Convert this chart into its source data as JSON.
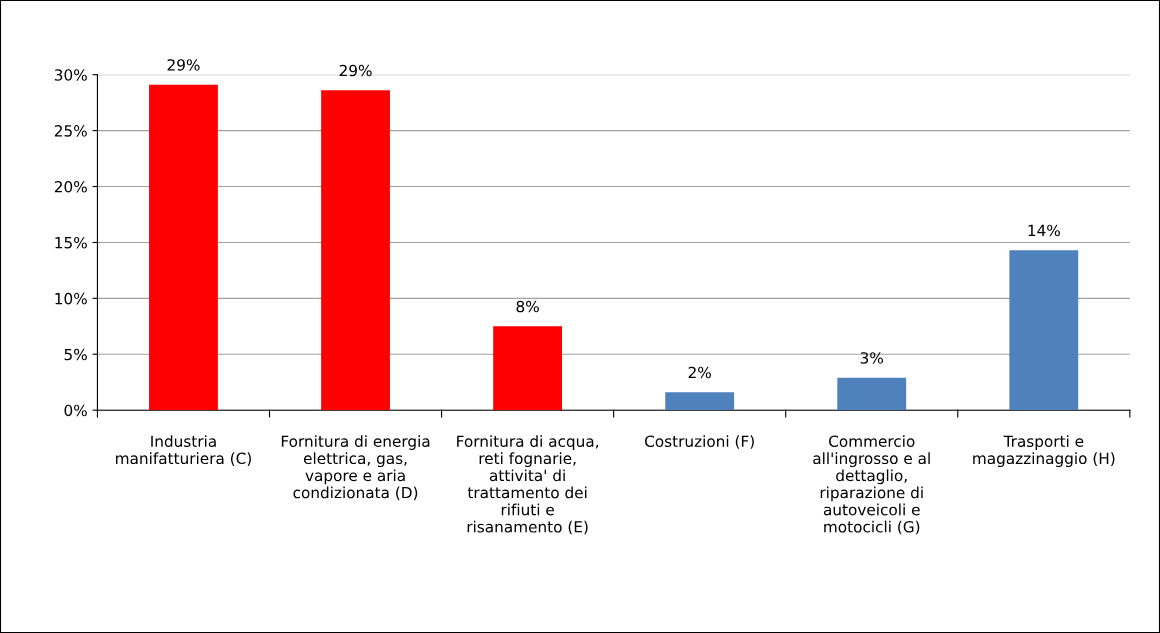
{
  "chart_data": {
    "type": "bar",
    "categories": [
      "Industria\nmanifatturiera (C)",
      "Fornitura di energia\nelettrica, gas,\nvapore e aria\ncondizionata (D)",
      "Fornitura di acqua,\nreti fognarie,\nattivita' di\ntrattamento dei\nrifiuti e\nrisanamento (E)",
      "Costruzioni (F)",
      "Commercio\nall'ingrosso e al\ndettaglio,\nriparazione di\nautoveicoli e\nmotocicli (G)",
      "Trasporti e\nmagazzinaggio (H)"
    ],
    "values": [
      29.1,
      28.6,
      7.5,
      1.6,
      2.9,
      14.3
    ],
    "value_labels": [
      "29%",
      "29%",
      "8%",
      "2%",
      "3%",
      "14%"
    ],
    "colors": [
      "#ff0000",
      "#ff0000",
      "#ff0000",
      "#4f81bd",
      "#4f81bd",
      "#4f81bd"
    ],
    "ylim": [
      0,
      30
    ],
    "yticks": [
      {
        "value": 0,
        "label": "0%"
      },
      {
        "value": 5,
        "label": "5%"
      },
      {
        "value": 10,
        "label": "10%"
      },
      {
        "value": 15,
        "label": "15%"
      },
      {
        "value": 20,
        "label": "20%"
      },
      {
        "value": 25,
        "label": "25%"
      },
      {
        "value": 30,
        "label": "30%"
      }
    ],
    "grid": "y",
    "legend": false
  }
}
